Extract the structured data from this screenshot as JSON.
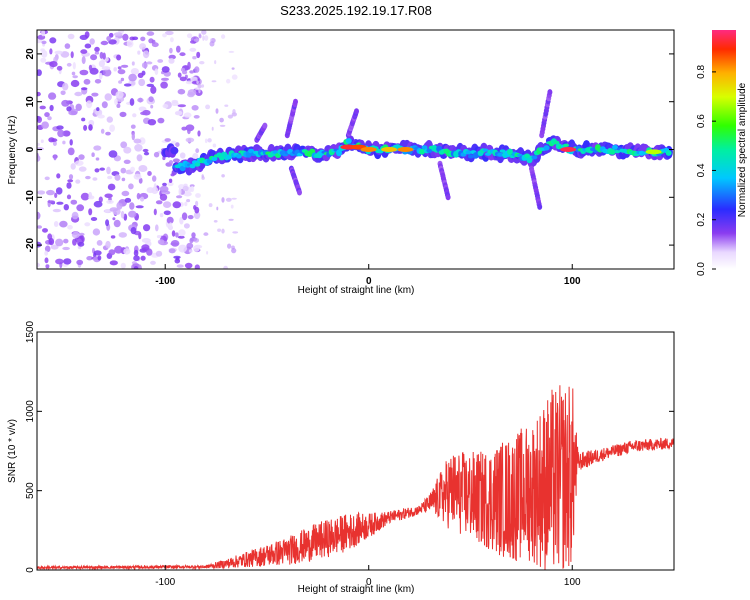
{
  "title": "S233.2025.192.19.17.R08",
  "colors": {
    "snr_line": "#e8322f",
    "blob": "#8a3cf0",
    "blob_light": "#c9a8f5"
  },
  "chart_data": [
    {
      "type": "heatmap",
      "xlabel": "Height of straight line (km)",
      "ylabel": "Frequency (Hz)",
      "xlim": [
        -163,
        150
      ],
      "ylim": [
        -25,
        25
      ],
      "xticks": [
        -100,
        0,
        100
      ],
      "yticks": [
        -20,
        -10,
        0,
        10,
        20
      ],
      "colorbar": {
        "label": "Normalized spectral amplitude",
        "range": [
          0,
          0.97
        ],
        "ticks": [
          0.0,
          0.2,
          0.4,
          0.6,
          0.8
        ]
      },
      "ridge": [
        {
          "x": -95,
          "y": -4
        },
        {
          "x": -85,
          "y": -3
        },
        {
          "x": -75,
          "y": -1.5
        },
        {
          "x": -65,
          "y": -1
        },
        {
          "x": -55,
          "y": -0.5
        },
        {
          "x": -45,
          "y": -1
        },
        {
          "x": -35,
          "y": -0.5
        },
        {
          "x": -25,
          "y": -1
        },
        {
          "x": -15,
          "y": -0.5
        },
        {
          "x": -10,
          "y": 1.5
        },
        {
          "x": -5,
          "y": 0.5
        },
        {
          "x": 0,
          "y": 0
        },
        {
          "x": 10,
          "y": 0
        },
        {
          "x": 20,
          "y": 0
        },
        {
          "x": 30,
          "y": 0
        },
        {
          "x": 40,
          "y": -0.5
        },
        {
          "x": 50,
          "y": -1
        },
        {
          "x": 60,
          "y": -0.5
        },
        {
          "x": 70,
          "y": -1
        },
        {
          "x": 80,
          "y": -2
        },
        {
          "x": 90,
          "y": 1.5
        },
        {
          "x": 100,
          "y": 0
        },
        {
          "x": 110,
          "y": 0
        },
        {
          "x": 120,
          "y": 0
        },
        {
          "x": 130,
          "y": -0.5
        },
        {
          "x": 145,
          "y": -0.5
        }
      ],
      "peaks": [
        {
          "x": -10,
          "y": 0.5,
          "v": 0.95
        },
        {
          "x": -5,
          "y": 0.5,
          "v": 0.9
        },
        {
          "x": 0,
          "y": 0,
          "v": 0.85
        },
        {
          "x": 10,
          "y": 0,
          "v": 0.8
        },
        {
          "x": 18,
          "y": 0,
          "v": 0.85
        },
        {
          "x": 98,
          "y": 0,
          "v": 0.97
        },
        {
          "x": 140,
          "y": -0.5,
          "v": 0.7
        }
      ]
    },
    {
      "type": "line",
      "xlabel": "Height of straight line (km)",
      "ylabel": "SNR (10 * v/v)",
      "xlim": [
        -163,
        150
      ],
      "ylim": [
        0,
        1500
      ],
      "xticks": [
        -100,
        0,
        100
      ],
      "yticks": [
        0,
        500,
        1000,
        1500
      ],
      "series": [
        {
          "name": "",
          "envelope": [
            {
              "x": -163,
              "base": 15,
              "amp": 8
            },
            {
              "x": -80,
              "base": 20,
              "amp": 10
            },
            {
              "x": -70,
              "base": 40,
              "amp": 30
            },
            {
              "x": -55,
              "base": 80,
              "amp": 60
            },
            {
              "x": -40,
              "base": 120,
              "amp": 90
            },
            {
              "x": -25,
              "base": 180,
              "amp": 120
            },
            {
              "x": -10,
              "base": 240,
              "amp": 120
            },
            {
              "x": 0,
              "base": 280,
              "amp": 80
            },
            {
              "x": 10,
              "base": 330,
              "amp": 40
            },
            {
              "x": 25,
              "base": 380,
              "amp": 30
            },
            {
              "x": 30,
              "base": 420,
              "amp": 60
            },
            {
              "x": 40,
              "base": 500,
              "amp": 250
            },
            {
              "x": 55,
              "base": 450,
              "amp": 300
            },
            {
              "x": 70,
              "base": 450,
              "amp": 400
            },
            {
              "x": 80,
              "base": 500,
              "amp": 450
            },
            {
              "x": 90,
              "base": 550,
              "amp": 600
            },
            {
              "x": 100,
              "base": 600,
              "amp": 600
            },
            {
              "x": 103,
              "base": 680,
              "amp": 60
            },
            {
              "x": 115,
              "base": 730,
              "amp": 40
            },
            {
              "x": 130,
              "base": 780,
              "amp": 40
            },
            {
              "x": 150,
              "base": 800,
              "amp": 35
            }
          ]
        }
      ]
    }
  ]
}
